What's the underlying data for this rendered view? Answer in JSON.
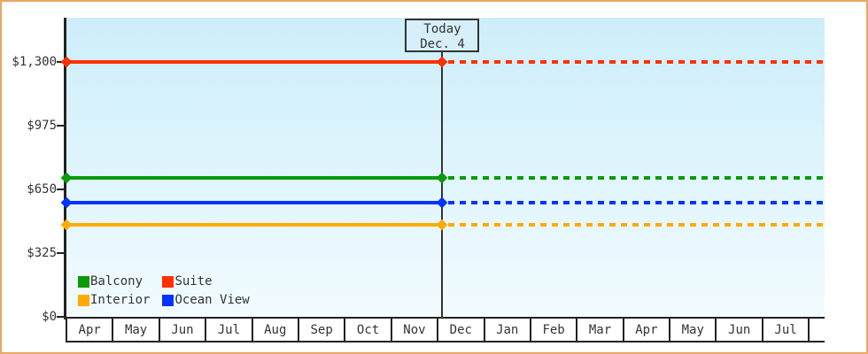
{
  "chart_data": {
    "type": "line",
    "title": "",
    "x_axis": {
      "months": [
        "Apr",
        "May",
        "Jun",
        "Jul",
        "Aug",
        "Sep",
        "Oct",
        "Nov",
        "Dec",
        "Jan",
        "Feb",
        "Mar",
        "Apr",
        "May",
        "Jun",
        "Jul"
      ]
    },
    "y_axis": {
      "ticks": [
        {
          "value": 0,
          "label": "$0"
        },
        {
          "value": 325,
          "label": "$325"
        },
        {
          "value": 650,
          "label": "$650"
        },
        {
          "value": 975,
          "label": "$975"
        },
        {
          "value": 1300,
          "label": "$1,300"
        }
      ],
      "range_max": 1525
    },
    "series": [
      {
        "name": "Suite",
        "color": "#ff3000",
        "value": 1300
      },
      {
        "name": "Balcony",
        "color": "#0a9a0a",
        "value": 710
      },
      {
        "name": "Ocean View",
        "color": "#0033ff",
        "value": 580
      },
      {
        "name": "Interior",
        "color": "#ffaa00",
        "value": 470
      }
    ],
    "line_style": {
      "before_today": "solid",
      "after_today": "dashed"
    },
    "today": {
      "line1": "Today",
      "line2": "Dec. 4",
      "month_index": 8,
      "day_fraction": 0.12
    },
    "legend": {
      "position": "bottom-left",
      "rows": [
        [
          "Balcony",
          "Suite"
        ],
        [
          "Interior",
          "Ocean View"
        ]
      ]
    }
  },
  "colors": {
    "frame_border": "#e9a75f",
    "plot_bg_top": "#cceefa",
    "plot_bg_bottom": "#f2fbff",
    "axis": "#222222",
    "text": "#333333",
    "today_box_bg": "#d6effa",
    "today_line": "#333333",
    "month_cell_bg": "#ffffff"
  }
}
